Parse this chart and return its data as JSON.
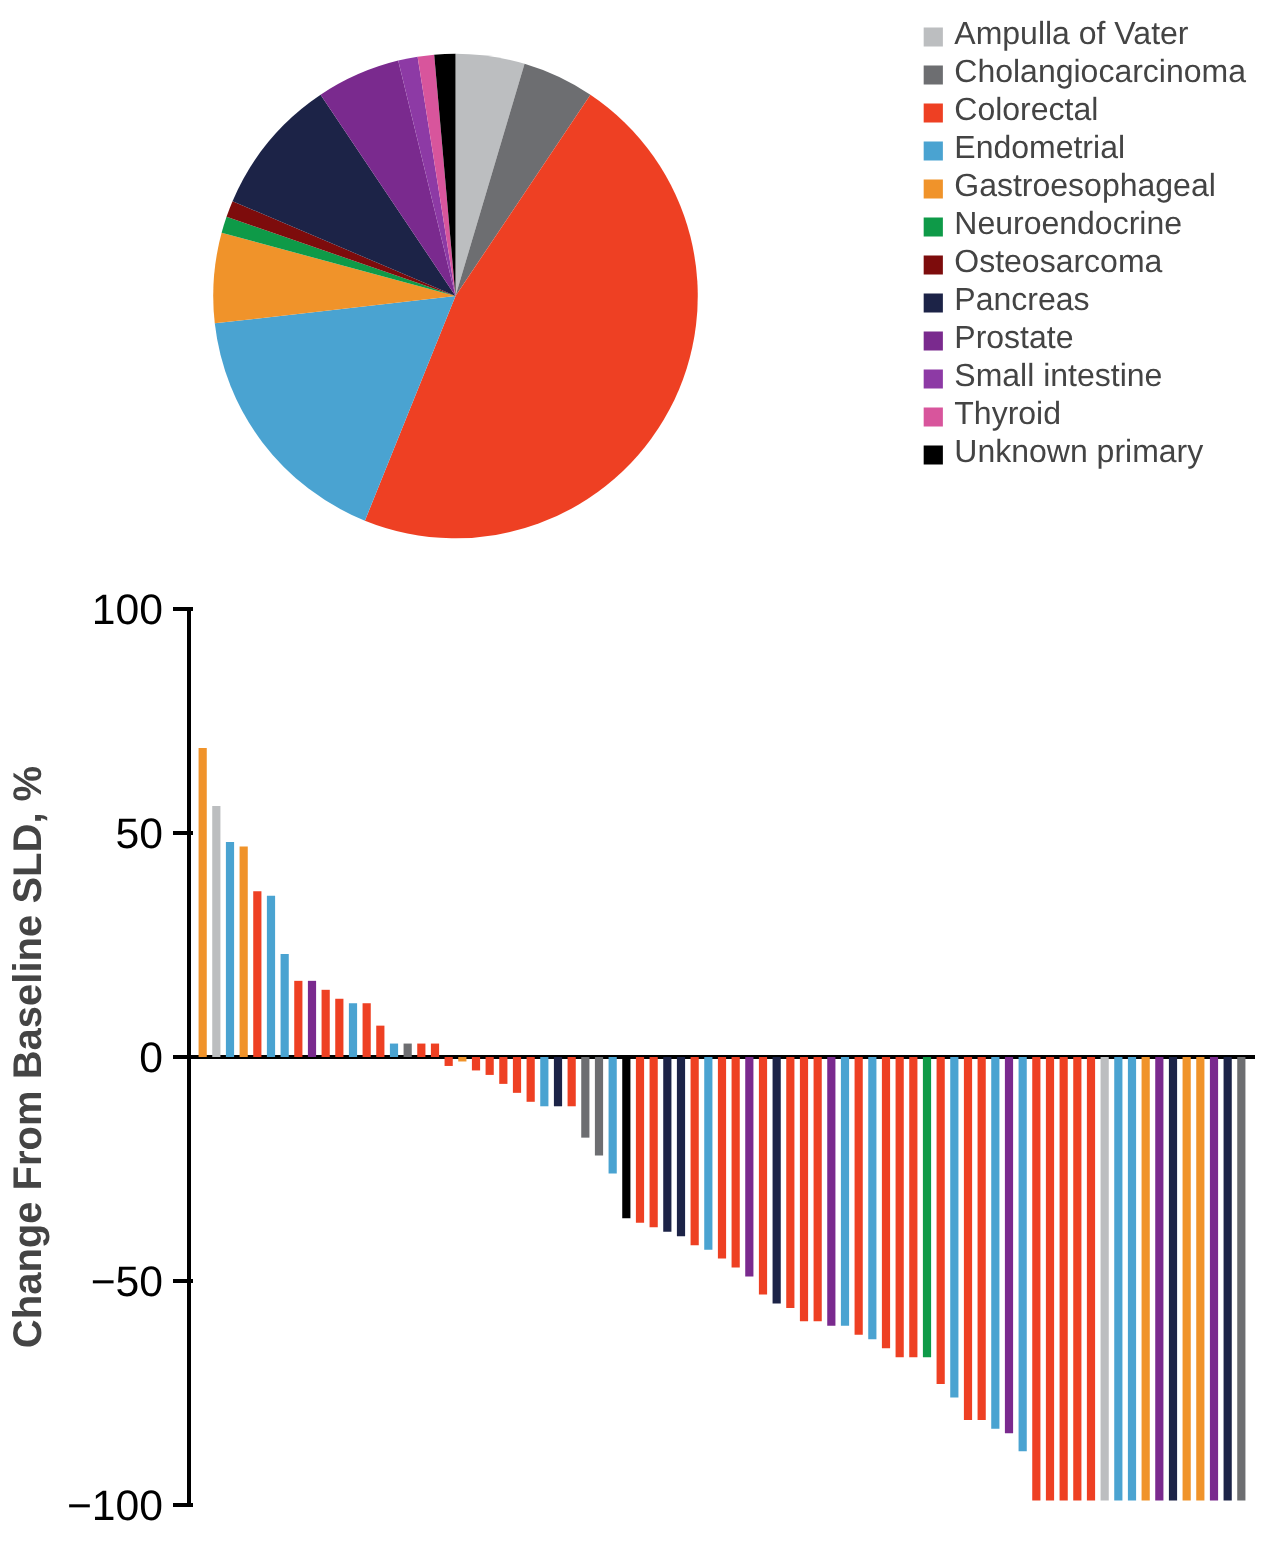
{
  "chart_data": [
    {
      "type": "pie",
      "categories": [
        "Ampulla of Vater",
        "Cholangiocarcinoma",
        "Colorectal",
        "Endometrial",
        "Gastroesophageal",
        "Neuroendocrine",
        "Osteosarcoma",
        "Pancreas",
        "Prostate",
        "Small intestine",
        "Thyroid",
        "Unknown primary"
      ],
      "values": [
        4.6,
        4.8,
        46.7,
        17.1,
        6.0,
        1.1,
        1.1,
        9.2,
        5.6,
        1.3,
        1.1,
        1.4
      ],
      "colors": [
        "#bcbec0",
        "#6d6e71",
        "#ee4023",
        "#4aa3d1",
        "#f0932a",
        "#0e9a48",
        "#7d0c0c",
        "#1c2347",
        "#7a2a8e",
        "#8d3aa5",
        "#d8559c",
        "#000000"
      ],
      "legend": "right"
    },
    {
      "type": "bar",
      "ylabel": "Change From Baseline SLD, %",
      "ylim": [
        -100,
        100
      ],
      "yticks": [
        -100,
        -50,
        0,
        50,
        100
      ],
      "tick_labels": "y",
      "grid": false,
      "ref_lines": [
        {
          "axis": "y",
          "value": 0,
          "color": "#000000"
        }
      ],
      "categories": [
        null,
        null,
        null,
        null,
        null,
        null,
        null,
        null,
        null,
        null,
        null,
        null,
        null,
        null,
        null,
        null,
        null,
        null,
        null,
        null,
        null,
        null,
        null,
        null,
        null,
        null,
        null,
        null,
        null,
        null,
        null,
        null,
        null,
        null,
        null,
        null,
        null,
        null,
        null,
        null,
        null,
        null,
        null,
        null,
        null,
        null,
        null,
        null,
        null,
        null,
        null,
        null,
        null,
        null,
        null,
        null,
        null,
        null,
        null,
        null,
        null,
        null,
        null,
        null,
        null,
        null,
        null,
        null,
        null,
        null,
        null,
        null,
        null,
        null,
        null,
        null,
        null
      ],
      "values": [
        69,
        56,
        48,
        47,
        37,
        36,
        23,
        17,
        17,
        15,
        13,
        12,
        12,
        7,
        3,
        3,
        3,
        3,
        -2,
        -1,
        -3,
        -4,
        -6,
        -8,
        -10,
        -11,
        -11,
        -11,
        -18,
        -22,
        -26,
        -36,
        -37,
        -38,
        -39,
        -40,
        -42,
        -43,
        -45,
        -47,
        -49,
        -53,
        -55,
        -56,
        -59,
        -59,
        -60,
        -60,
        -62,
        -63,
        -65,
        -67,
        -67,
        -67,
        -73,
        -76,
        -81,
        -81,
        -83,
        -84,
        -88,
        -99,
        -99,
        -99,
        -99,
        -99,
        -99,
        -99,
        -99,
        -99,
        -99,
        -99,
        -99,
        -99,
        -99,
        -99,
        -99
      ],
      "colors": [
        "#f0932a",
        "#bcbec0",
        "#4aa3d1",
        "#f0932a",
        "#ee4023",
        "#4aa3d1",
        "#4aa3d1",
        "#ee4023",
        "#7a2a8e",
        "#ee4023",
        "#ee4023",
        "#4aa3d1",
        "#ee4023",
        "#ee4023",
        "#4aa3d1",
        "#6d6e71",
        "#ee4023",
        "#ee4023",
        "#ee4023",
        "#f0932a",
        "#ee4023",
        "#ee4023",
        "#ee4023",
        "#ee4023",
        "#ee4023",
        "#4aa3d1",
        "#1c2347",
        "#ee4023",
        "#6d6e71",
        "#6d6e71",
        "#4aa3d1",
        "#000000",
        "#ee4023",
        "#ee4023",
        "#1c2347",
        "#1c2347",
        "#ee4023",
        "#4aa3d1",
        "#ee4023",
        "#ee4023",
        "#7a2a8e",
        "#ee4023",
        "#1c2347",
        "#ee4023",
        "#ee4023",
        "#ee4023",
        "#7a2a8e",
        "#4aa3d1",
        "#ee4023",
        "#4aa3d1",
        "#ee4023",
        "#ee4023",
        "#ee4023",
        "#0e9a48",
        "#ee4023",
        "#4aa3d1",
        "#ee4023",
        "#ee4023",
        "#4aa3d1",
        "#7a2a8e",
        "#4aa3d1",
        "#ee4023",
        "#ee4023",
        "#ee4023",
        "#ee4023",
        "#ee4023",
        "#bcbec0",
        "#4aa3d1",
        "#4aa3d1",
        "#f0932a",
        "#7a2a8e",
        "#1c2347",
        "#f0932a",
        "#f0932a",
        "#7a2a8e",
        "#1c2347",
        "#6d6e71"
      ]
    }
  ]
}
